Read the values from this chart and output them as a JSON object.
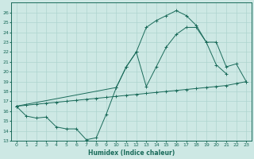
{
  "xlabel": "Humidex (Indice chaleur)",
  "background_color": "#cde8e4",
  "grid_color": "#aed4cf",
  "line_color": "#1a6b5a",
  "xlim": [
    -0.5,
    23.5
  ],
  "ylim": [
    13,
    27
  ],
  "yticks": [
    13,
    14,
    15,
    16,
    17,
    18,
    19,
    20,
    21,
    22,
    23,
    24,
    25,
    26
  ],
  "xticks": [
    0,
    1,
    2,
    3,
    4,
    5,
    6,
    7,
    8,
    9,
    10,
    11,
    12,
    13,
    14,
    15,
    16,
    17,
    18,
    19,
    20,
    21,
    22,
    23
  ],
  "line1_x": [
    0,
    1,
    2,
    3,
    4,
    5,
    6,
    7,
    8,
    9,
    10,
    11,
    12,
    13,
    14,
    15,
    16,
    17,
    18,
    19,
    20,
    21
  ],
  "line1_y": [
    16.5,
    15.5,
    15.3,
    15.4,
    14.4,
    14.2,
    14.2,
    13.1,
    13.3,
    15.7,
    18.4,
    20.5,
    22.0,
    24.5,
    25.2,
    25.7,
    26.2,
    25.7,
    24.7,
    23.0,
    20.7,
    19.8
  ],
  "line2_x": [
    0,
    10,
    11,
    12,
    13,
    14,
    15,
    16,
    17,
    18,
    19,
    20,
    21,
    22,
    23
  ],
  "line2_y": [
    16.5,
    18.4,
    20.5,
    22.0,
    18.5,
    20.5,
    22.5,
    23.8,
    24.5,
    24.5,
    23.0,
    23.0,
    20.5,
    20.8,
    19.0
  ],
  "line3_x": [
    0,
    1,
    2,
    3,
    4,
    5,
    6,
    7,
    8,
    9,
    10,
    11,
    12,
    13,
    14,
    15,
    16,
    17,
    18,
    19,
    20,
    21,
    22,
    23
  ],
  "line3_y": [
    16.5,
    16.6,
    16.7,
    16.8,
    16.9,
    17.0,
    17.1,
    17.2,
    17.3,
    17.4,
    17.5,
    17.6,
    17.7,
    17.8,
    17.9,
    18.0,
    18.1,
    18.2,
    18.3,
    18.4,
    18.5,
    18.6,
    18.8,
    19.0
  ]
}
